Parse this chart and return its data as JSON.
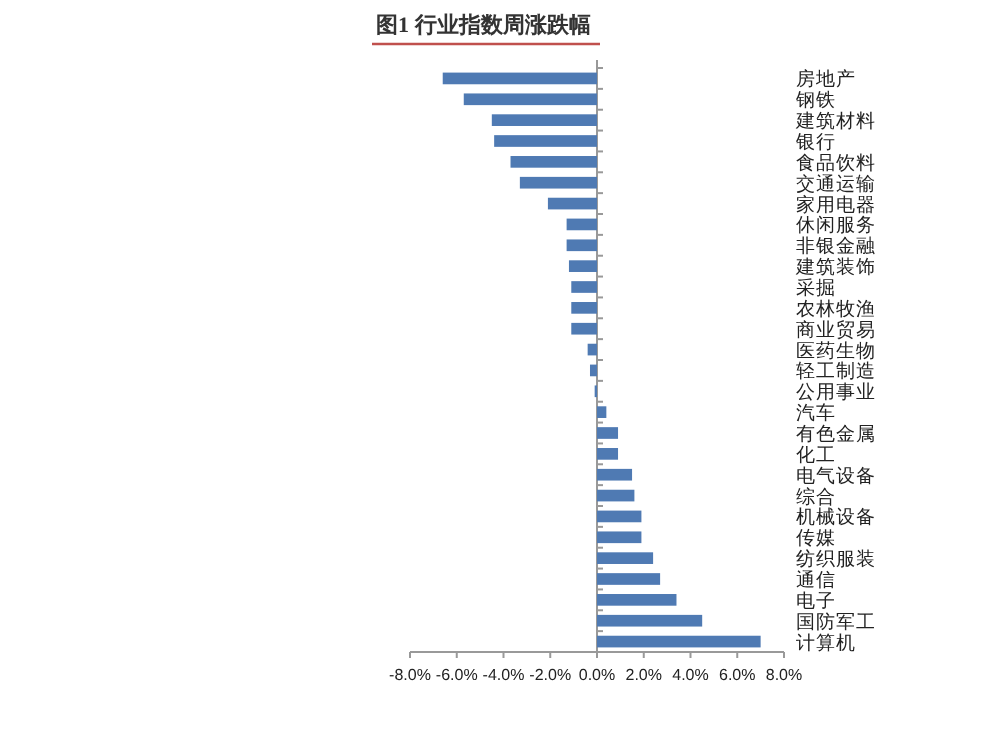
{
  "chart_data": {
    "type": "bar",
    "orientation": "horizontal",
    "title": "图1 行业指数周涨跌幅",
    "categories": [
      "房地产",
      "钢铁",
      "建筑材料",
      "银行",
      "食品饮料",
      "交通运输",
      "家用电器",
      "休闲服务",
      "非银金融",
      "建筑装饰",
      "采掘",
      "农林牧渔",
      "商业贸易",
      "医药生物",
      "轻工制造",
      "公用事业",
      "汽车",
      "有色金属",
      "化工",
      "电气设备",
      "综合",
      "机械设备",
      "传媒",
      "纺织服装",
      "通信",
      "电子",
      "国防军工",
      "计算机"
    ],
    "values": [
      -6.6,
      -5.7,
      -4.5,
      -4.4,
      -3.7,
      -3.3,
      -2.1,
      -1.3,
      -1.3,
      -1.2,
      -1.1,
      -1.1,
      -1.1,
      -0.4,
      -0.3,
      -0.1,
      0.4,
      0.9,
      0.9,
      1.5,
      1.6,
      1.9,
      1.9,
      2.4,
      2.7,
      3.4,
      4.5,
      7.0
    ],
    "color": "#4f7ab3",
    "xlim": [
      -8,
      8
    ],
    "xticks": [
      {
        "value": -8,
        "label": "-8.0%"
      },
      {
        "value": -6,
        "label": "-6.0%"
      },
      {
        "value": -4,
        "label": "-4.0%"
      },
      {
        "value": -2,
        "label": "-2.0%"
      },
      {
        "value": 0,
        "label": "0.0%"
      },
      {
        "value": 2,
        "label": "2.0%"
      },
      {
        "value": 4,
        "label": "4.0%"
      },
      {
        "value": 6,
        "label": "6.0%"
      },
      {
        "value": 8,
        "label": "8.0%"
      }
    ]
  }
}
